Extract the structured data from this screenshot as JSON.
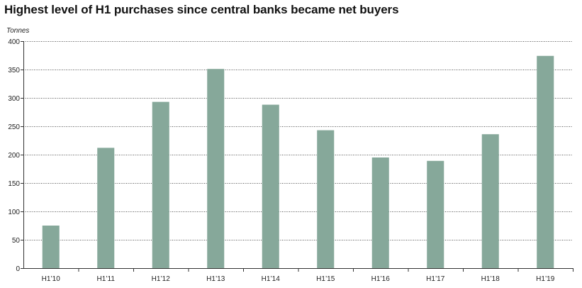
{
  "chart_data": {
    "type": "bar",
    "title": "Highest level of H1 purchases since central banks became net buyers",
    "ylabel": "Tonnes",
    "xlabel": "",
    "categories": [
      "H1’10",
      "H1’11",
      "H1’12",
      "H1’13",
      "H1’14",
      "H1’15",
      "H1’16",
      "H1’17",
      "H1’18",
      "H1’19"
    ],
    "values": [
      75,
      212,
      293,
      351,
      288,
      243,
      195,
      189,
      236,
      374
    ],
    "ylim": [
      0,
      400
    ],
    "yticks": [
      0,
      50,
      100,
      150,
      200,
      250,
      300,
      350,
      400
    ],
    "grid": true,
    "legend": "none",
    "colors": {
      "bar": "#86a89a",
      "grid": "#555555",
      "axis": "#333333"
    }
  }
}
